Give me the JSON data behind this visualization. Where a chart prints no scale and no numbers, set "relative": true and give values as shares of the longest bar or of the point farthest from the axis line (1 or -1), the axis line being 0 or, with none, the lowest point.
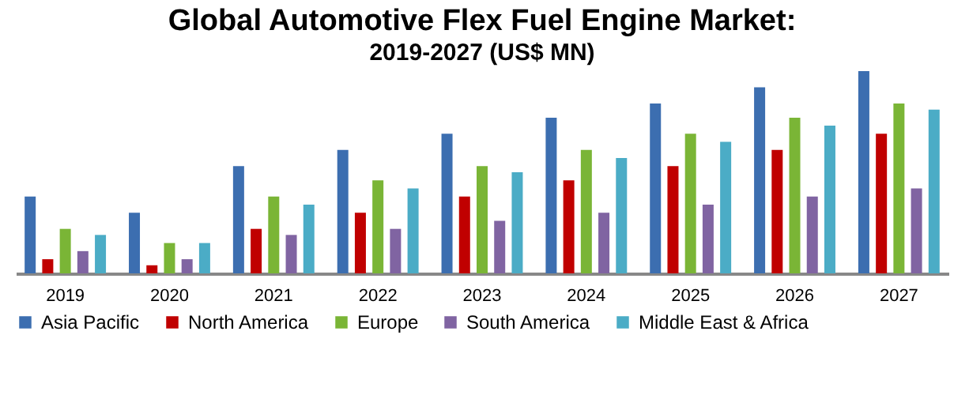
{
  "chart_data": {
    "type": "bar",
    "title": "Global Automotive Flex Fuel Engine Market:",
    "subtitle": "2019-2027 (US$ MN)",
    "relative": true,
    "legend": "bottom",
    "categories": [
      "2019",
      "2020",
      "2021",
      "2022",
      "2023",
      "2024",
      "2025",
      "2026",
      "2027"
    ],
    "series": [
      {
        "name": "Asia Pacific",
        "color": "#3c6eb0",
        "values": [
          0.38,
          0.3,
          0.53,
          0.61,
          0.69,
          0.77,
          0.84,
          0.92,
          1
        ]
      },
      {
        "name": "North America",
        "color": "#c00000",
        "values": [
          0.07,
          0.04,
          0.22,
          0.3,
          0.38,
          0.46,
          0.53,
          0.61,
          0.69
        ]
      },
      {
        "name": "Europe",
        "color": "#7ab536",
        "values": [
          0.22,
          0.15,
          0.38,
          0.46,
          0.53,
          0.61,
          0.69,
          0.77,
          0.84
        ]
      },
      {
        "name": "South America",
        "color": "#8064a2",
        "values": [
          0.11,
          0.07,
          0.19,
          0.22,
          0.26,
          0.3,
          0.34,
          0.38,
          0.42
        ]
      },
      {
        "name": "Middle East & Africa",
        "color": "#4bacc6",
        "values": [
          0.19,
          0.15,
          0.34,
          0.42,
          0.5,
          0.57,
          0.65,
          0.73,
          0.81
        ]
      }
    ]
  }
}
